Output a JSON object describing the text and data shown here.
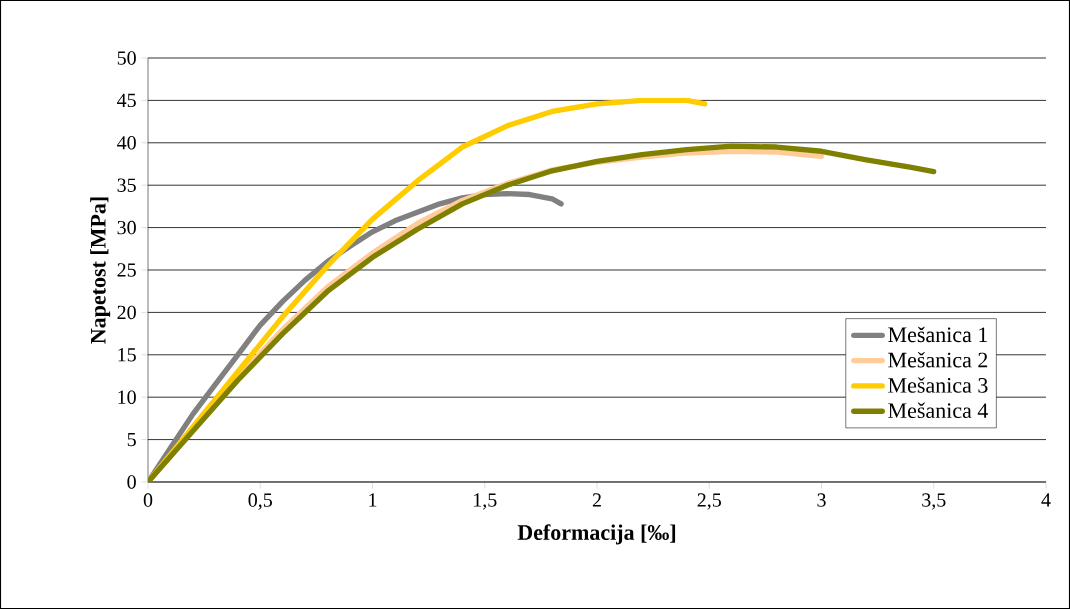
{
  "chart_data": {
    "type": "line",
    "xlabel": "Deformacija [‰]",
    "ylabel": "Napetost [MPa]",
    "xlim": [
      0,
      4
    ],
    "xticks": [
      0,
      {
        "value": 0.5,
        "label": "0,5"
      },
      1,
      {
        "value": 1.5,
        "label": "1,5"
      },
      2,
      {
        "value": 2.5,
        "label": "2,5"
      },
      3,
      {
        "value": 3.5,
        "label": "3,5"
      },
      4
    ],
    "ylim": [
      0,
      50
    ],
    "yticks": [
      0,
      5,
      10,
      15,
      20,
      25,
      30,
      35,
      40,
      45,
      50
    ],
    "grid": "y",
    "legend": "right",
    "marker": "none",
    "line_style": "solid",
    "series": [
      {
        "name": "Mešanica 1",
        "color": "#808080",
        "x": [
          0,
          0.1,
          0.2,
          0.3,
          0.4,
          0.5,
          0.6,
          0.7,
          0.8,
          0.9,
          1.0,
          1.1,
          1.2,
          1.3,
          1.4,
          1.5,
          1.6,
          1.7,
          1.8,
          1.84
        ],
        "values": [
          0,
          4,
          8,
          11.5,
          15,
          18.5,
          21.3,
          23.8,
          26,
          27.8,
          29.5,
          30.8,
          31.8,
          32.8,
          33.5,
          33.9,
          34,
          33.9,
          33.4,
          32.8
        ]
      },
      {
        "name": "Mešanica 2",
        "color": "#ffcc99",
        "x": [
          0,
          0.2,
          0.4,
          0.6,
          0.8,
          1.0,
          1.2,
          1.4,
          1.6,
          1.8,
          2.0,
          2.2,
          2.4,
          2.6,
          2.8,
          3.0
        ],
        "values": [
          0,
          6.2,
          12.3,
          18,
          23,
          27,
          30.5,
          33.2,
          35.2,
          36.8,
          37.7,
          38.3,
          38.8,
          39,
          38.9,
          38.4
        ]
      },
      {
        "name": "Mešanica 3",
        "color": "#ffcc00",
        "x": [
          0,
          0.2,
          0.4,
          0.6,
          0.8,
          1.0,
          1.2,
          1.4,
          1.6,
          1.8,
          2.0,
          2.2,
          2.4,
          2.48
        ],
        "values": [
          0,
          6.5,
          13,
          19.5,
          25.5,
          31,
          35.5,
          39.5,
          42,
          43.7,
          44.6,
          45,
          45,
          44.6
        ]
      },
      {
        "name": "Mešanica 4",
        "color": "#808000",
        "x": [
          0,
          0.2,
          0.4,
          0.6,
          0.8,
          1.0,
          1.2,
          1.4,
          1.6,
          1.8,
          2.0,
          2.2,
          2.4,
          2.6,
          2.8,
          3.0,
          3.2,
          3.4,
          3.5
        ],
        "values": [
          0,
          6,
          12,
          17.5,
          22.5,
          26.5,
          29.8,
          32.8,
          35,
          36.7,
          37.8,
          38.6,
          39.2,
          39.6,
          39.5,
          39,
          38,
          37.1,
          36.6
        ]
      }
    ]
  }
}
